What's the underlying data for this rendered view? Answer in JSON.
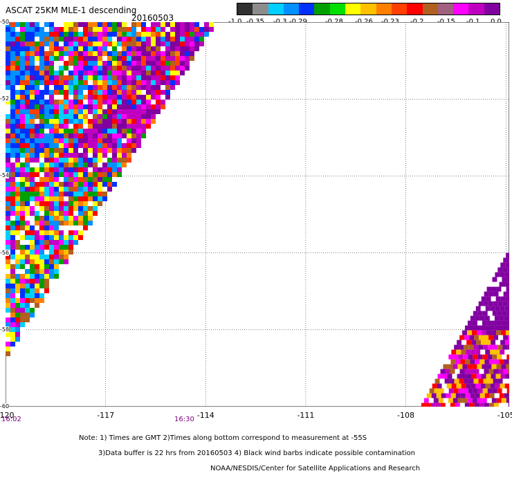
{
  "header": {
    "title": "ASCAT 25KM MLE-1 descending",
    "date": "20160503"
  },
  "colorbar": {
    "colors": [
      "#303030",
      "#8c8c8c",
      "#00d0ff",
      "#0090ff",
      "#0030ff",
      "#00a000",
      "#00e000",
      "#ffff00",
      "#ffc000",
      "#ff8000",
      "#ff4000",
      "#ff0000",
      "#b06020",
      "#a06080",
      "#ff00ff",
      "#c000c0",
      "#8000a0"
    ],
    "labels": [
      "-1.0",
      "-0.35",
      "-0.3",
      "-0.29",
      "-0.28",
      "-0.26",
      "-0.23",
      "-0.2",
      "-0.15",
      "-0.1",
      "0.0"
    ]
  },
  "axes": {
    "lon_ticks": [
      "-120",
      "-117",
      "-114",
      "-111",
      "-108",
      "-105"
    ],
    "lat_ticks": [
      "-50",
      "-52",
      "-54",
      "-56",
      "-58",
      "-60"
    ],
    "lon_range": [
      -120,
      -104.9
    ],
    "lat_range": [
      -60,
      -50
    ]
  },
  "times": [
    "16:02",
    "16:30"
  ],
  "notes": [
    "Note: 1) Times are GMT 2)Times along bottom correspond to measurement at -55S",
    "3)Data buffer is 22 hrs from 20160503 4) Black wind barbs indicate possible contamination",
    "NOAA/NESDIS/Center for Satellite Applications and Research"
  ],
  "swaths": {
    "west": {
      "lon_start": -120,
      "lat_top": -50,
      "lat_bottom": -60,
      "lon_top_edge": -113.8,
      "lon_bottom_edge": -120,
      "upper_colors": "mixed",
      "lower_colors": "mixed"
    },
    "east": {
      "lon_start": -105,
      "lat_top": -56,
      "lat_bottom": -60,
      "lon_bottom_edge": -107.6,
      "colors": "purple"
    }
  }
}
